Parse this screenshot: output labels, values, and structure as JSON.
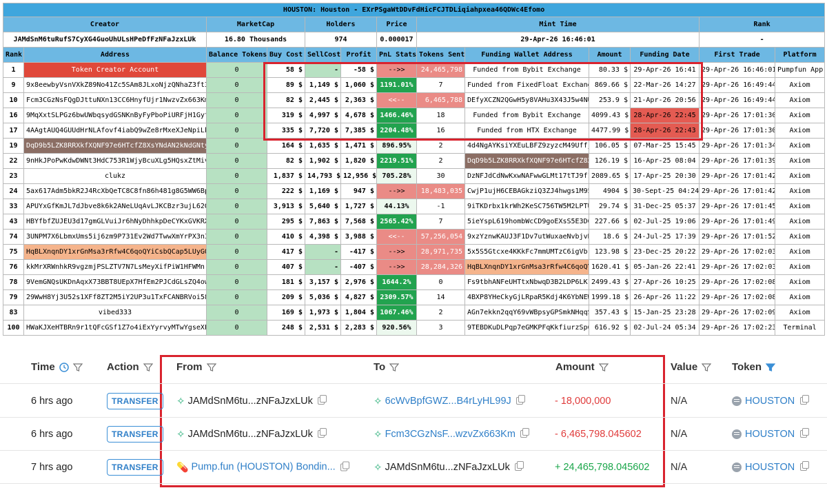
{
  "title": "HOUSTON: Houston - EXrPSgaWtDDvFdHicFCJTDLiqiahpxea46QDWc4Efomo",
  "meta_headers": [
    "Creator",
    "MarketCap",
    "Holders",
    "Price",
    "Mint Time",
    "Rank"
  ],
  "meta_values": [
    "JAMdSnM6tuRufS7CyXG4GuoUhULsHPeDfFzNFaJzxLUk",
    "16.80 Thousands",
    "974",
    "0.000017",
    "29-Apr-26 16:46:01",
    "-"
  ],
  "columns": [
    "Rank",
    "Address",
    "Balance Tokens",
    "Buy Cost",
    "SellCost",
    "Profit",
    "PnL Stats",
    "Tokens Sent",
    "Funding Wallet Address",
    "Amount",
    "Funding Date",
    "First Trade",
    "Platform"
  ],
  "rows": [
    {
      "rank": "1",
      "address": "Token Creator Account",
      "balance": "0",
      "buy": "58 $",
      "sell": "-",
      "profit": "-58 $",
      "pnl": "-->>",
      "sent": "24,465,798",
      "funding": "Funded from Bybit Exchange",
      "amount": "80.33 $",
      "fdate": "29-Apr-26 16:41",
      "first": "29-Apr-26 16:46:01",
      "platform": "Pumpfun App"
    },
    {
      "rank": "9",
      "address": "9x8eewbyVsnVXkZ89No41Zc5SAm8JLxoNjzQNhaZ3ft3",
      "balance": "0",
      "buy": "89 $",
      "sell": "1,149 $",
      "profit": "1,060 $",
      "pnl": "1191.01%",
      "sent": "7",
      "funding": "Funded from FixedFloat Exchange",
      "amount": "869.66 $",
      "fdate": "22-Mar-26 14:27",
      "first": "29-Apr-26 16:49:44",
      "platform": "Axiom"
    },
    {
      "rank": "10",
      "address": "Fcm3CGzNsFQgDJttuNXn13CC6HnyfUjr1NwzvZx663Km",
      "balance": "0",
      "buy": "82 $",
      "sell": "2,445 $",
      "profit": "2,363 $",
      "pnl": "<<--",
      "sent": "6,465,788",
      "funding": "DEfyXCZN2QGwH5y8VAHu3X43J5w4NU",
      "amount": "253.9 $",
      "fdate": "21-Apr-26 20:56",
      "first": "29-Apr-26 16:49:44",
      "platform": "Axiom"
    },
    {
      "rank": "16",
      "address": "9MqXxtSLPGz6bwUWbqsydGSNKnByFyPboPiURFjH1Gyt",
      "balance": "0",
      "buy": "319 $",
      "sell": "4,997 $",
      "profit": "4,678 $",
      "pnl": "1466.46%",
      "sent": "18",
      "funding": "Funded from Bybit Exchange",
      "amount": "4099.43 $",
      "fdate": "28-Apr-26 22:45",
      "first": "29-Apr-26 17:01:30",
      "platform": "Axiom"
    },
    {
      "rank": "17",
      "address": "4AAgtAUQ4GUUdHrNLAfovf4iabQ9wZe8rMxeXJeNpiLk",
      "balance": "0",
      "buy": "335 $",
      "sell": "7,720 $",
      "profit": "7,385 $",
      "pnl": "2204.48%",
      "sent": "16",
      "funding": "Funded from HTX Exchange",
      "amount": "4477.99 $",
      "fdate": "28-Apr-26 22:43",
      "first": "29-Apr-26 17:01:30",
      "platform": "Axiom"
    },
    {
      "rank": "19",
      "address": "DqD9b5LZK8RRXkfXQNF97e6HTcfZ8XsYNdAN2kNdGNty",
      "balance": "0",
      "buy": "164 $",
      "sell": "1,635 $",
      "profit": "1,471 $",
      "pnl": "896.95%",
      "sent": "2",
      "funding": "4d4NgAYKsiYXEuLBFZ9zyzcM49Uffj",
      "amount": "106.05 $",
      "fdate": "07-Mar-25 15:45",
      "first": "29-Apr-26 17:01:34",
      "platform": "Axiom"
    },
    {
      "rank": "22",
      "address": "9nHkJPoPwKdwDWNt3HdC753R1WjyBcuXLg5HQsxZtMiv",
      "balance": "0",
      "buy": "82 $",
      "sell": "1,902 $",
      "profit": "1,820 $",
      "pnl": "2219.51%",
      "sent": "2",
      "funding": "DqD9b5LZK8RRXkfXQNF97e6HTcfZ8X",
      "amount": "126.19 $",
      "fdate": "16-Apr-25 08:04",
      "first": "29-Apr-26 17:01:39",
      "platform": "Axiom"
    },
    {
      "rank": "23",
      "address": "clukz",
      "balance": "0",
      "buy": "1,837 $",
      "sell": "14,793 $",
      "profit": "12,956 $",
      "pnl": "705.28%",
      "sent": "30",
      "funding": "DzNFJdCdNwKxwNAFwwGLMt17tTJ9f1",
      "amount": "2089.65 $",
      "fdate": "17-Apr-25 20:30",
      "first": "29-Apr-26 17:01:42",
      "platform": "Axiom"
    },
    {
      "rank": "24",
      "address": "5ax617Adm5bkR2J4RcXbQeTC8C8fn86h481g8G5WW6Bp",
      "balance": "0",
      "buy": "222 $",
      "sell": "1,169 $",
      "profit": "947 $",
      "pnl": "-->>",
      "sent": "18,483,035",
      "funding": "CwjP1ujH6CEBAGkziQ3ZJ4hwgs1M95",
      "amount": "4904 $",
      "fdate": "30-Sept-25 04:24",
      "first": "29-Apr-26 17:01:42",
      "platform": "Axiom"
    },
    {
      "rank": "33",
      "address": "APUYxGfKmJL7dJbve8k6k2ANeLUqAvLJKCBzr3ujL62G",
      "balance": "0",
      "buy": "3,913 $",
      "sell": "5,640 $",
      "profit": "1,727 $",
      "pnl": "44.13%",
      "sent": "-1",
      "funding": "9iTKDrbx1krWh2KeSC756TW5M2LPTU",
      "amount": "29.74 $",
      "fdate": "31-Dec-25 05:37",
      "first": "29-Apr-26 17:01:45",
      "platform": "Axiom"
    },
    {
      "rank": "43",
      "address": "HBYfbfZUJEU3d17gmGLVuiJr6hNyDhhkpDeCYKxGVKRX",
      "balance": "0",
      "buy": "295 $",
      "sell": "7,863 $",
      "profit": "7,568 $",
      "pnl": "2565.42%",
      "sent": "7",
      "funding": "5ieYspL619hombWcCD9goEXsS5E3D6",
      "amount": "227.66 $",
      "fdate": "02-Jul-25 19:06",
      "first": "29-Apr-26 17:01:49",
      "platform": "Axiom"
    },
    {
      "rank": "74",
      "address": "3UNPM7X6LbmxUms5ij6zm9P731Ev2Wd7TwwXmYrPX3n3",
      "balance": "0",
      "buy": "410 $",
      "sell": "4,398 $",
      "profit": "3,988 $",
      "pnl": "<<--",
      "sent": "57,256,054",
      "funding": "9xzYznwKAUJ3F1Dv7utWuxaeNvbjvB",
      "amount": "18.6 $",
      "fdate": "24-Jul-25 17:39",
      "first": "29-Apr-26 17:01:52",
      "platform": "Axiom"
    },
    {
      "rank": "75",
      "address": "HqBLXnqnDY1xrGnMsa3rRfw4C6qoQYiCsbQCap5LUyGQ",
      "balance": "0",
      "buy": "417 $",
      "sell": "-",
      "profit": "-417 $",
      "pnl": "-->>",
      "sent": "28,971,735",
      "funding": "5x5S5Gtcxe4KKkFc7mmUMTzC6igVb",
      "amount": "123.98 $",
      "fdate": "23-Dec-25 20:22",
      "first": "29-Apr-26 17:02:03",
      "platform": "Axiom"
    },
    {
      "rank": "76",
      "address": "kkMrXRWnhkR9vgzmjPSLZTV7N7LsMeyXifPiW1HFWMn",
      "balance": "0",
      "buy": "407 $",
      "sell": "-",
      "profit": "-407 $",
      "pnl": "-->>",
      "sent": "28,284,326",
      "funding": "HqBLXnqnDY1xrGnMsa3rRfw4C6qoQY",
      "amount": "1620.41 $",
      "fdate": "05-Jan-26 22:41",
      "first": "29-Apr-26 17:02:03",
      "platform": "Axiom"
    },
    {
      "rank": "78",
      "address": "9VemGNQsUKDnAqxX73BBT8UEpX7HfEm2PJCdGLsZQ4ow",
      "balance": "0",
      "buy": "181 $",
      "sell": "3,157 $",
      "profit": "2,976 $",
      "pnl": "1644.2%",
      "sent": "0",
      "funding": "Fs9tbhANFeUHTtxNbwqD3B2LDP6LK1",
      "amount": "2499.43 $",
      "fdate": "27-Apr-26 10:25",
      "first": "29-Apr-26 17:02:08",
      "platform": "Axiom"
    },
    {
      "rank": "79",
      "address": "29WwH8Yj3U52s1XFf8ZT2M5iY2UP3u1TxFCANBRVoi58",
      "balance": "0",
      "buy": "209 $",
      "sell": "5,036 $",
      "profit": "4,827 $",
      "pnl": "2309.57%",
      "sent": "14",
      "funding": "4BXP8YHeCkyGjLRpaR5Kdj4K6YbNEW",
      "amount": "1999.18 $",
      "fdate": "26-Apr-26 11:22",
      "first": "29-Apr-26 17:02:08",
      "platform": "Axiom"
    },
    {
      "rank": "83",
      "address": "vibed333",
      "balance": "0",
      "buy": "169 $",
      "sell": "1,973 $",
      "profit": "1,804 $",
      "pnl": "1067.46%",
      "sent": "2",
      "funding": "AGn7ekkn2qqY69vWBpsyGPSmkNHqqS",
      "amount": "357.43 $",
      "fdate": "15-Jan-25 23:28",
      "first": "29-Apr-26 17:02:09",
      "platform": "Axiom"
    },
    {
      "rank": "100",
      "address": "HWaKJXeHTBRn9r1tQFcGSf1Z7o4iExYyrvyMTwYgseXF",
      "balance": "0",
      "buy": "248 $",
      "sell": "2,531 $",
      "profit": "2,283 $",
      "pnl": "920.56%",
      "sent": "3",
      "funding": "9TEBDKuDLPqp7eGMKPFqKkfiurzSp6",
      "amount": "616.92 $",
      "fdate": "02-Jul-24 05:34",
      "first": "29-Apr-26 17:02:23",
      "platform": "Terminal"
    }
  ],
  "transfers": {
    "headers": {
      "time": "Time",
      "action": "Action",
      "from": "From",
      "to": "To",
      "amount": "Amount",
      "value": "Value",
      "token": "Token"
    },
    "rows": [
      {
        "time": "6 hrs ago",
        "action": "TRANSFER",
        "from": "JAMdSnM6tu...zNFaJzxLUk",
        "to": "6cWvBpfGWZ...B4rLyHL99J",
        "amount": "- 18,000,000",
        "value": "N/A",
        "token": "HOUSTON"
      },
      {
        "time": "6 hrs ago",
        "action": "TRANSFER",
        "from": "JAMdSnM6tu...zNFaJzxLUk",
        "to": "Fcm3CGzNsF...wzvZx663Km",
        "amount": "- 6,465,798.045602",
        "value": "N/A",
        "token": "HOUSTON"
      },
      {
        "time": "7 hrs ago",
        "action": "TRANSFER",
        "from": "Pump.fun (HOUSTON) Bondin...",
        "to": "JAMdSnM6tu...zNFaJzxLUk",
        "amount": "+ 24,465,798.045602",
        "value": "N/A",
        "token": "HOUSTON"
      }
    ]
  },
  "colors": {
    "header_blue": "#6db8e3",
    "title_blue": "#3fa6dd",
    "profit_green": "#22a34f",
    "loss_red": "#ea8b86",
    "creator_red": "#e0483a",
    "highlight_box": "#d9232e"
  }
}
